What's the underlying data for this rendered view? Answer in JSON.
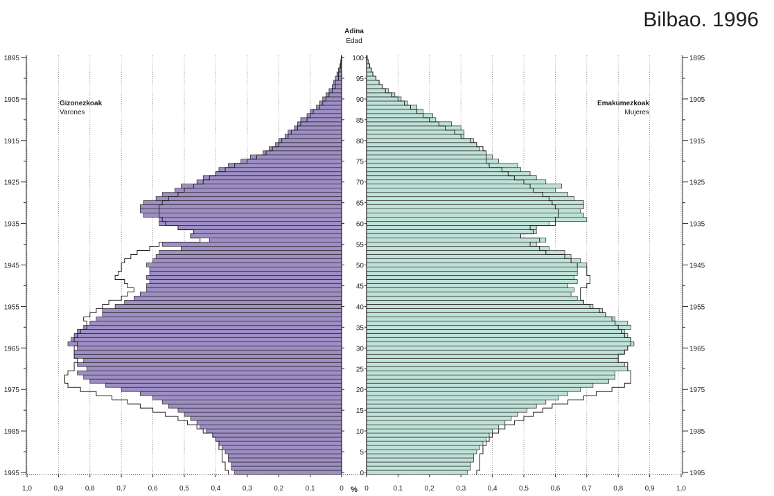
{
  "colors": {
    "male": "#9d8fc4",
    "female": "#bfe2d8",
    "stroke": "#231f20",
    "grid": "#808080"
  },
  "chart_data": {
    "type": "bar",
    "title": "Bilbao. 1996",
    "center_label_bold": "Adina",
    "center_label": "Edad",
    "left_label_bold": "Gizonezkoak",
    "left_label": "Varones",
    "right_label_bold": "Emakumezkoak",
    "right_label": "Mujeres",
    "axis_unit": "%",
    "xlim": [
      0,
      1.0
    ],
    "x_ticks": [
      "0",
      "0,1",
      "0,2",
      "0,3",
      "0,4",
      "0,5",
      "0,6",
      "0,7",
      "0,8",
      "0,9",
      "1,0"
    ],
    "age_ticks": [
      0,
      5,
      10,
      15,
      20,
      25,
      30,
      35,
      40,
      45,
      50,
      55,
      60,
      65,
      70,
      75,
      80,
      85,
      90,
      95,
      100
    ],
    "year_ticks": [
      1895,
      1905,
      1915,
      1925,
      1935,
      1945,
      1955,
      1965,
      1975,
      1985,
      1995
    ],
    "ages": [
      0,
      1,
      2,
      3,
      4,
      5,
      6,
      7,
      8,
      9,
      10,
      11,
      12,
      13,
      14,
      15,
      16,
      17,
      18,
      19,
      20,
      21,
      22,
      23,
      24,
      25,
      26,
      27,
      28,
      29,
      30,
      31,
      32,
      33,
      34,
      35,
      36,
      37,
      38,
      39,
      40,
      41,
      42,
      43,
      44,
      45,
      46,
      47,
      48,
      49,
      50,
      51,
      52,
      53,
      54,
      55,
      56,
      57,
      58,
      59,
      60,
      61,
      62,
      63,
      64,
      65,
      66,
      67,
      68,
      69,
      70,
      71,
      72,
      73,
      74,
      75,
      76,
      77,
      78,
      79,
      80,
      81,
      82,
      83,
      84,
      85,
      86,
      87,
      88,
      89,
      90,
      91,
      92,
      93,
      94,
      95,
      96,
      97,
      98,
      99,
      100
    ],
    "series": [
      {
        "name": "Gizonezkoak",
        "values": [
          0.34,
          0.35,
          0.35,
          0.36,
          0.36,
          0.37,
          0.38,
          0.39,
          0.4,
          0.41,
          0.43,
          0.45,
          0.46,
          0.48,
          0.5,
          0.52,
          0.55,
          0.57,
          0.6,
          0.64,
          0.7,
          0.75,
          0.8,
          0.82,
          0.84,
          0.81,
          0.84,
          0.82,
          0.85,
          0.85,
          0.84,
          0.87,
          0.86,
          0.85,
          0.84,
          0.82,
          0.8,
          0.78,
          0.76,
          0.76,
          0.72,
          0.69,
          0.66,
          0.64,
          0.62,
          0.62,
          0.61,
          0.62,
          0.61,
          0.61,
          0.62,
          0.6,
          0.59,
          0.58,
          0.51,
          0.57,
          0.42,
          0.48,
          0.47,
          0.52,
          0.58,
          0.58,
          0.63,
          0.64,
          0.64,
          0.63,
          0.59,
          0.57,
          0.53,
          0.51,
          0.46,
          0.44,
          0.4,
          0.39,
          0.36,
          0.32,
          0.29,
          0.25,
          0.23,
          0.21,
          0.2,
          0.18,
          0.17,
          0.15,
          0.14,
          0.13,
          0.11,
          0.1,
          0.08,
          0.07,
          0.06,
          0.05,
          0.04,
          0.03,
          0.025,
          0.02,
          0.015,
          0.01,
          0.006,
          0.003,
          0.001
        ]
      },
      {
        "name": "Emakumezkoak",
        "values": [
          0.32,
          0.33,
          0.33,
          0.34,
          0.34,
          0.35,
          0.36,
          0.37,
          0.38,
          0.39,
          0.4,
          0.42,
          0.44,
          0.46,
          0.48,
          0.51,
          0.54,
          0.57,
          0.61,
          0.64,
          0.68,
          0.72,
          0.77,
          0.79,
          0.79,
          0.83,
          0.82,
          0.8,
          0.8,
          0.82,
          0.83,
          0.85,
          0.84,
          0.83,
          0.82,
          0.84,
          0.83,
          0.79,
          0.76,
          0.75,
          0.72,
          0.69,
          0.67,
          0.65,
          0.66,
          0.64,
          0.67,
          0.66,
          0.67,
          0.67,
          0.7,
          0.68,
          0.65,
          0.63,
          0.58,
          0.54,
          0.57,
          0.49,
          0.54,
          0.54,
          0.58,
          0.7,
          0.69,
          0.68,
          0.69,
          0.69,
          0.66,
          0.64,
          0.6,
          0.62,
          0.57,
          0.54,
          0.52,
          0.49,
          0.48,
          0.42,
          0.4,
          0.38,
          0.36,
          0.35,
          0.34,
          0.31,
          0.31,
          0.3,
          0.27,
          0.22,
          0.21,
          0.18,
          0.16,
          0.13,
          0.11,
          0.09,
          0.07,
          0.05,
          0.04,
          0.03,
          0.02,
          0.015,
          0.01,
          0.005,
          0.002
        ]
      }
    ],
    "comparison": [
      {
        "side": "left",
        "values": [
          0.36,
          0.37,
          0.37,
          0.38,
          0.38,
          0.38,
          0.39,
          0.39,
          0.4,
          0.41,
          0.44,
          0.46,
          0.49,
          0.52,
          0.56,
          0.6,
          0.64,
          0.68,
          0.73,
          0.78,
          0.83,
          0.87,
          0.88,
          0.88,
          0.87,
          0.85,
          0.85,
          0.84,
          0.85,
          0.85,
          0.85,
          0.84,
          0.85,
          0.84,
          0.83,
          0.81,
          0.81,
          0.82,
          0.8,
          0.78,
          0.76,
          0.74,
          0.7,
          0.68,
          0.66,
          0.68,
          0.69,
          0.72,
          0.71,
          0.7,
          0.7,
          0.69,
          0.67,
          0.65,
          0.61,
          0.58,
          0.45,
          0.48,
          0.47,
          0.52,
          0.56,
          0.57,
          0.58,
          0.58,
          0.58,
          0.57,
          0.55,
          0.52,
          0.5,
          0.47,
          0.44,
          0.42,
          0.4,
          0.37,
          0.34,
          0.3,
          0.27,
          0.24,
          0.22,
          0.2,
          0.19,
          0.17,
          0.16,
          0.14,
          0.13,
          0.11,
          0.1,
          0.09,
          0.07,
          0.06,
          0.05,
          0.04,
          0.03,
          0.02,
          0.02,
          0.01,
          0.01,
          0.005,
          0.003,
          0.002,
          0.001
        ]
      },
      {
        "side": "right",
        "values": [
          0.35,
          0.36,
          0.36,
          0.36,
          0.36,
          0.37,
          0.37,
          0.38,
          0.39,
          0.4,
          0.42,
          0.44,
          0.47,
          0.5,
          0.53,
          0.56,
          0.59,
          0.64,
          0.69,
          0.73,
          0.78,
          0.82,
          0.84,
          0.84,
          0.84,
          0.83,
          0.83,
          0.8,
          0.8,
          0.82,
          0.83,
          0.84,
          0.84,
          0.82,
          0.81,
          0.8,
          0.79,
          0.78,
          0.76,
          0.74,
          0.71,
          0.69,
          0.68,
          0.68,
          0.68,
          0.7,
          0.71,
          0.71,
          0.7,
          0.7,
          0.67,
          0.65,
          0.63,
          0.57,
          0.55,
          0.52,
          0.55,
          0.49,
          0.53,
          0.52,
          0.6,
          0.6,
          0.61,
          0.61,
          0.6,
          0.59,
          0.58,
          0.56,
          0.53,
          0.52,
          0.5,
          0.47,
          0.45,
          0.43,
          0.39,
          0.38,
          0.38,
          0.38,
          0.37,
          0.35,
          0.33,
          0.3,
          0.28,
          0.25,
          0.23,
          0.2,
          0.18,
          0.16,
          0.14,
          0.12,
          0.1,
          0.08,
          0.06,
          0.05,
          0.04,
          0.03,
          0.02,
          0.015,
          0.01,
          0.005,
          0.002
        ]
      }
    ]
  }
}
